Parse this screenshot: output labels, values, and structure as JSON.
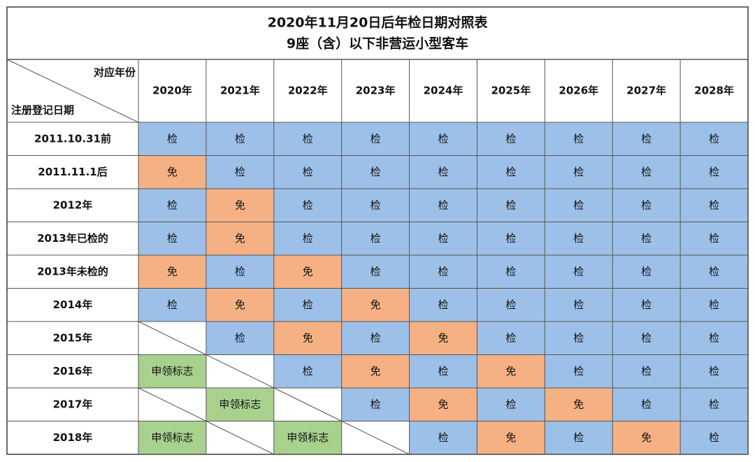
{
  "table": {
    "title": [
      "2020年11月20日后年检日期对照表",
      "9座（含）以下非营运小型客车"
    ],
    "corner": {
      "top": "对应年份",
      "bottom": "注册登记日期"
    },
    "columns": [
      "2020年",
      "2021年",
      "2022年",
      "2023年",
      "2024年",
      "2025年",
      "2026年",
      "2027年",
      "2028年"
    ],
    "rows": [
      {
        "label": "2011.10.31前",
        "cells": [
          "检",
          "检",
          "检",
          "检",
          "检",
          "检",
          "检",
          "检",
          "检"
        ]
      },
      {
        "label": "2011.11.1后",
        "cells": [
          "免",
          "检",
          "检",
          "检",
          "检",
          "检",
          "检",
          "检",
          "检"
        ]
      },
      {
        "label": "2012年",
        "cells": [
          "检",
          "免",
          "检",
          "检",
          "检",
          "检",
          "检",
          "检",
          "检"
        ]
      },
      {
        "label": "2013年已检的",
        "cells": [
          "检",
          "免",
          "检",
          "检",
          "检",
          "检",
          "检",
          "检",
          "检"
        ]
      },
      {
        "label": "2013年未检的",
        "cells": [
          "免",
          "检",
          "免",
          "检",
          "检",
          "检",
          "检",
          "检",
          "检"
        ]
      },
      {
        "label": "2014年",
        "cells": [
          "检",
          "免",
          "检",
          "免",
          "检",
          "检",
          "检",
          "检",
          "检"
        ]
      },
      {
        "label": "2015年",
        "cells": [
          null,
          "检",
          "免",
          "检",
          "免",
          "检",
          "检",
          "检",
          "检"
        ]
      },
      {
        "label": "2016年",
        "cells": [
          "申领标志",
          null,
          "检",
          "免",
          "检",
          "免",
          "检",
          "检",
          "检"
        ]
      },
      {
        "label": "2017年",
        "cells": [
          null,
          "申领标志",
          null,
          "检",
          "免",
          "检",
          "免",
          "检",
          "检"
        ]
      },
      {
        "label": "2018年",
        "cells": [
          "申领标志",
          null,
          "申领标志",
          null,
          "检",
          "免",
          "检",
          "免",
          "检"
        ]
      }
    ],
    "cell_colors": {
      "检": "#9dc0e8",
      "免": "#f5b183",
      "申领标志": "#a9d18e"
    }
  }
}
